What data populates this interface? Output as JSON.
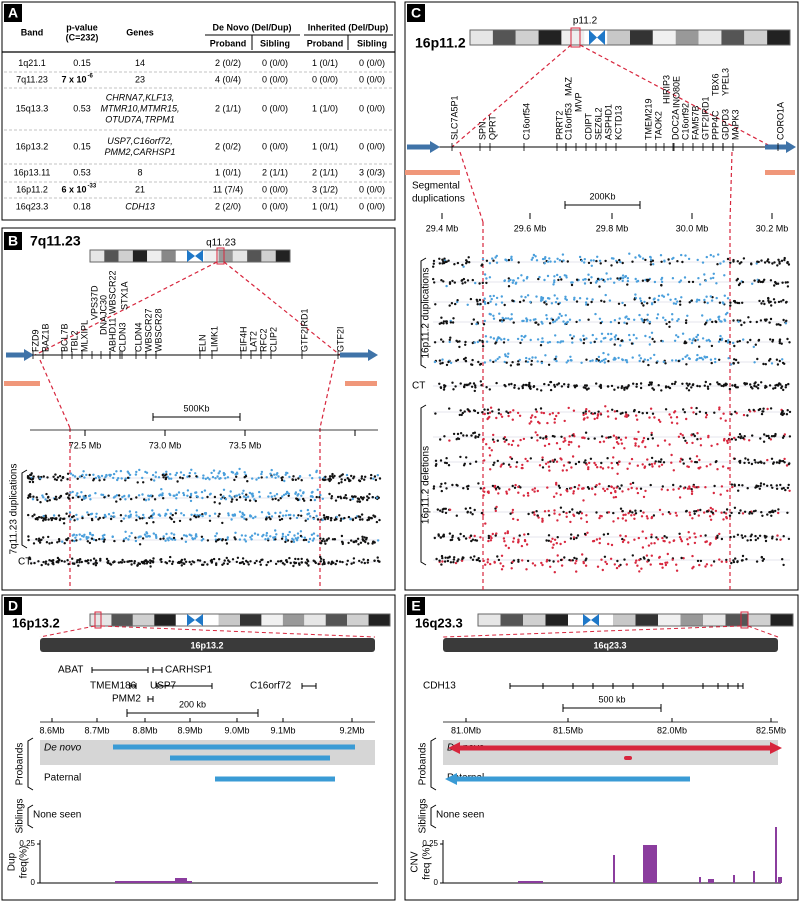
{
  "panel_a": {
    "label": "A",
    "header": {
      "band": "Band",
      "pvalue": [
        "p-value",
        "(C=232)"
      ],
      "genes": "Genes",
      "de_novo": "De Novo (Del/Dup)",
      "inherited": "Inherited (Del/Dup)",
      "sub": [
        "Proband",
        "Sibling",
        "Proband",
        "Sibling"
      ]
    },
    "rows": [
      [
        "1q21.1",
        "0.15",
        "14",
        "2 (0/2)",
        "0 (0/0)",
        "1 (0/1)",
        "0 (0/0)"
      ],
      [
        "7q11.23",
        {
          "base": "7 x 10",
          "exp": "-6"
        },
        "23",
        "4 (0/4)",
        "0 (0/0)",
        "0 (0/0)",
        "0 (0/0)"
      ],
      [
        "15q13.3",
        "0.53",
        [
          "CHRNA7,KLF13,",
          "MTMR10,MTMR15,",
          "OTUD7A,TRPM1"
        ],
        "2 (1/1)",
        "0 (0/0)",
        "1 (1/0)",
        "0 (0/0)"
      ],
      [
        "16p13.2",
        "0.15",
        [
          "USP7,C16orf72,",
          "PMM2,CARHSP1"
        ],
        "2 (0/2)",
        "0 (0/0)",
        "1 (0/1)",
        "0 (0/0)"
      ],
      [
        "16p13.11",
        "0.53",
        "8",
        "1 (0/1)",
        "2 (1/1)",
        "2 (1/1)",
        "3 (0/3)"
      ],
      [
        "16p11.2",
        {
          "base": "6 x 10",
          "exp": "-33"
        },
        "21",
        "11 (7/4)",
        "0 (0/0)",
        "3 (1/2)",
        "0 (0/0)"
      ],
      [
        "16q23.3",
        "0.18",
        "CDH13",
        "2 (2/0)",
        "0 (0/0)",
        "1 (0/1)",
        "0 (0/0)"
      ]
    ]
  },
  "panel_b": {
    "label": "B",
    "band": "7q11.23",
    "cyto_band": "q11.23",
    "genes": [
      "FZD9",
      "BAZ1B",
      "BCL7B",
      "TBL2",
      "MLXIPL",
      "VPS37D",
      "DNAJC30",
      "WBSCR22",
      "STX1A",
      "ABHD11",
      "CLDN3",
      "CLDN4",
      "WBSCR27",
      "WBSCR28",
      "ELN",
      "LIMK1",
      "EIF4H",
      "LAT2",
      "RFC2",
      "CLIP2",
      "GTF2IRD1",
      "GTF2I"
    ],
    "scale": "500Kb",
    "axis": [
      "72.5 Mb",
      "73.0 Mb",
      "73.5 Mb"
    ],
    "dup_label": "7q11.23 duplications",
    "control": "CT"
  },
  "panel_c": {
    "label": "C",
    "band": "16p11.2",
    "cyto_band": "p11.2",
    "genes": [
      "SLC7A5P1",
      "SPN",
      "QPRT",
      "C16orf54",
      "PRRT2",
      "MAZ",
      "C16orf53",
      "MVP",
      "CDIPT",
      "SEZ6L2",
      "ASPHD1",
      "KCTD13",
      "TMEM219",
      "TAOK2",
      "HIRIP3",
      "INO80E",
      "DOC2A",
      "C16orf92",
      "FAM57B",
      "GTF2IRD1",
      "PPP4C",
      "TBX6",
      "YPEL3",
      "GDPD3",
      "MAPK3",
      "CORO1A"
    ],
    "segmental": [
      "Segmental",
      "duplications"
    ],
    "scale": "200Kb",
    "axis": [
      "29.4 Mb",
      "29.6 Mb",
      "29.8 Mb",
      "30.0 Mb",
      "30.2 Mb"
    ],
    "dup_label": "16p11.2 duplications",
    "control": "CT",
    "del_label": "16p11.2 deletions"
  },
  "panel_d": {
    "label": "D",
    "band": "16p13.2",
    "bar_label": "16p13.2",
    "genes": [
      "ABAT",
      "CARHSP1",
      "TMEM186",
      "USP7",
      "C16orf72",
      "PMM2"
    ],
    "scale": "200 kb",
    "axis": [
      "8.6Mb",
      "8.7Mb",
      "8.8Mb",
      "8.9Mb",
      "9.0Mb",
      "9.1Mb",
      "9.2Mb"
    ],
    "de_novo": "De novo",
    "paternal": "Paternal",
    "probands": "Probands",
    "siblings": "Siblings",
    "none_seen": "None seen",
    "freq_label": [
      "Dup",
      "freq(%)"
    ],
    "freq_ticks": [
      "0.25",
      "0"
    ]
  },
  "panel_e": {
    "label": "E",
    "band": "16q23.3",
    "bar_label": "16q23.3",
    "genes": [
      "CDH13"
    ],
    "scale": "500 kb",
    "axis": [
      "81.0Mb",
      "81.5Mb",
      "82.0Mb",
      "82.5Mb"
    ],
    "de_novo": "De novo",
    "paternal": "Paternal",
    "probands": "Probands",
    "siblings": "Siblings",
    "none_seen": "None seen",
    "freq_label": [
      "CNV",
      "freq (%)"
    ],
    "freq_ticks": [
      "0.25",
      "0"
    ]
  }
}
